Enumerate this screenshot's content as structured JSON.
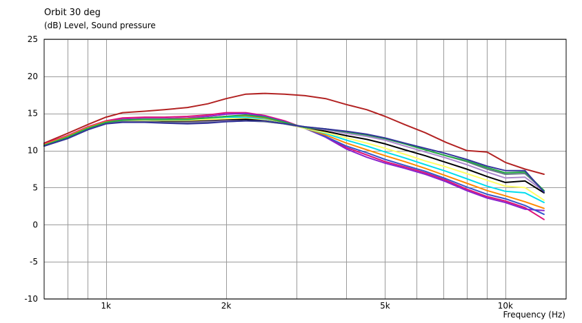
{
  "chart_data": {
    "type": "line",
    "title": "Orbit 30 deg",
    "subtitle": "(dB)  Level, Sound pressure",
    "xlabel": "Frequency  (Hz)",
    "x_scale": "log",
    "xlim": [
      700,
      14200
    ],
    "ylim": [
      -10,
      25
    ],
    "grid": true,
    "y_ticks": [
      -10,
      -5,
      0,
      5,
      10,
      15,
      20,
      25
    ],
    "x_ticks": [
      {
        "value": 1000,
        "label": "1k"
      },
      {
        "value": 2000,
        "label": "2k"
      },
      {
        "value": 5000,
        "label": "5k"
      },
      {
        "value": 10000,
        "label": "10k"
      }
    ],
    "x_gridlines": [
      800,
      900,
      1000,
      2000,
      3000,
      4000,
      5000,
      6000,
      7000,
      8000,
      9000,
      10000
    ],
    "x": [
      700,
      800,
      900,
      1000,
      1100,
      1250,
      1400,
      1600,
      1800,
      2000,
      2240,
      2500,
      2800,
      3150,
      3550,
      4000,
      4500,
      5000,
      5600,
      6300,
      7100,
      8000,
      9000,
      10000,
      11200,
      12500
    ],
    "series": [
      {
        "color": "#b22222",
        "values": [
          11.0,
          12.3,
          13.5,
          14.5,
          15.1,
          15.3,
          15.5,
          15.8,
          16.3,
          17.0,
          17.6,
          17.7,
          17.6,
          17.4,
          17.0,
          16.2,
          15.5,
          14.6,
          13.5,
          12.4,
          11.1,
          10.0,
          9.8,
          8.4,
          7.5,
          6.8
        ]
      },
      {
        "color": "#dd1177",
        "values": [
          10.9,
          12.0,
          13.2,
          14.0,
          14.4,
          14.5,
          14.5,
          14.6,
          14.8,
          15.1,
          15.1,
          14.7,
          14.0,
          13.0,
          11.9,
          10.4,
          9.4,
          8.5,
          7.8,
          7.0,
          6.0,
          4.8,
          3.8,
          3.2,
          2.3,
          0.7
        ]
      },
      {
        "color": "#8822cc",
        "values": [
          10.8,
          11.9,
          13.1,
          13.9,
          14.2,
          14.3,
          14.3,
          14.4,
          14.6,
          14.9,
          15.0,
          14.6,
          13.9,
          13.0,
          11.8,
          10.2,
          9.1,
          8.3,
          7.6,
          6.8,
          5.8,
          4.6,
          3.6,
          3.0,
          2.1,
          1.9
        ]
      },
      {
        "color": "#3355cc",
        "values": [
          10.7,
          11.8,
          13.0,
          13.8,
          14.0,
          14.1,
          14.1,
          14.2,
          14.4,
          14.6,
          14.7,
          14.4,
          13.8,
          13.0,
          11.9,
          10.6,
          9.7,
          8.8,
          8.0,
          7.2,
          6.2,
          5.1,
          4.1,
          3.5,
          2.6,
          1.4
        ]
      },
      {
        "color": "#ff8800",
        "values": [
          10.8,
          11.9,
          13.1,
          13.9,
          14.1,
          14.2,
          14.2,
          14.3,
          14.4,
          14.6,
          14.6,
          14.3,
          13.7,
          13.0,
          12.1,
          11.0,
          10.1,
          9.3,
          8.5,
          7.6,
          6.6,
          5.6,
          4.6,
          3.9,
          3.1,
          2.2
        ]
      },
      {
        "color": "#00ddee",
        "values": [
          10.7,
          11.8,
          13.0,
          13.8,
          14.0,
          14.1,
          14.1,
          14.1,
          14.3,
          14.5,
          14.5,
          14.2,
          13.6,
          13.0,
          12.3,
          11.4,
          10.6,
          9.8,
          9.0,
          8.1,
          7.2,
          6.2,
          5.2,
          4.5,
          4.3,
          3.0
        ]
      },
      {
        "color": "#ffff66",
        "values": [
          10.7,
          11.8,
          13.0,
          13.8,
          14.0,
          14.0,
          14.0,
          14.0,
          14.2,
          14.3,
          14.3,
          14.1,
          13.6,
          13.0,
          12.4,
          11.7,
          11.0,
          10.3,
          9.5,
          8.6,
          7.8,
          6.9,
          6.0,
          5.2,
          5.0,
          3.3
        ]
      },
      {
        "color": "#000000",
        "values": [
          10.6,
          11.7,
          12.9,
          13.7,
          13.9,
          13.9,
          13.9,
          13.9,
          14.0,
          14.1,
          14.2,
          14.0,
          13.6,
          13.1,
          12.6,
          12.0,
          11.5,
          10.9,
          10.1,
          9.3,
          8.4,
          7.5,
          6.5,
          5.7,
          5.9,
          4.3
        ]
      },
      {
        "color": "#aa88cc",
        "values": [
          10.6,
          11.7,
          12.9,
          13.7,
          13.9,
          13.9,
          13.8,
          13.8,
          13.9,
          14.0,
          14.0,
          13.9,
          13.6,
          13.1,
          12.8,
          12.3,
          11.9,
          11.4,
          10.6,
          9.8,
          9.0,
          8.1,
          7.1,
          6.3,
          6.4,
          4.5
        ]
      },
      {
        "color": "#667788",
        "values": [
          10.6,
          11.6,
          12.8,
          13.7,
          13.9,
          13.9,
          13.8,
          13.7,
          13.8,
          13.9,
          14.0,
          13.9,
          13.6,
          13.2,
          12.9,
          12.5,
          12.1,
          11.6,
          10.9,
          10.1,
          9.3,
          8.5,
          7.5,
          6.8,
          6.9,
          4.6
        ]
      },
      {
        "color": "#22aa44",
        "values": [
          10.7,
          11.8,
          13.0,
          13.8,
          14.1,
          14.2,
          14.2,
          14.2,
          14.4,
          14.6,
          14.8,
          14.5,
          13.8,
          13.1,
          12.9,
          12.5,
          12.1,
          11.6,
          10.9,
          10.1,
          9.3,
          8.6,
          7.7,
          7.0,
          7.1,
          4.6
        ]
      },
      {
        "color": "#333399",
        "values": [
          10.6,
          11.6,
          12.8,
          13.6,
          13.8,
          13.8,
          13.7,
          13.6,
          13.7,
          13.9,
          14.0,
          14.0,
          13.6,
          13.2,
          12.9,
          12.6,
          12.2,
          11.7,
          11.0,
          10.3,
          9.6,
          8.8,
          7.9,
          7.3,
          7.3,
          4.4
        ]
      }
    ]
  }
}
